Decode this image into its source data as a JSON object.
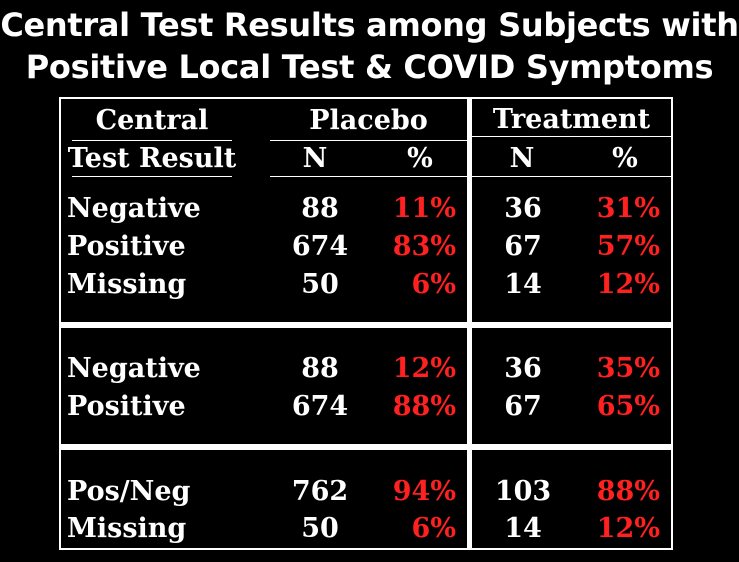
{
  "title": {
    "line1": "Central Test Results among Subjects with",
    "line2": "Positive Local Test & COVID Symptoms"
  },
  "colors": {
    "background": "#000000",
    "text": "#ffffff",
    "percent": "#ff2020"
  },
  "table": {
    "header": {
      "col1_line1": "Central",
      "col1_line2": "Test Result",
      "placebo": "Placebo",
      "treatment": "Treatment",
      "n": "N",
      "pct": "%"
    },
    "sections": [
      {
        "rows": [
          {
            "label": "Negative",
            "placebo_n": "88",
            "placebo_pct": "11%",
            "treatment_n": "36",
            "treatment_pct": "31%"
          },
          {
            "label": "Positive",
            "placebo_n": "674",
            "placebo_pct": "83%",
            "treatment_n": "67",
            "treatment_pct": "57%"
          },
          {
            "label": "Missing",
            "placebo_n": "50",
            "placebo_pct": "6%",
            "treatment_n": "14",
            "treatment_pct": "12%"
          }
        ]
      },
      {
        "rows": [
          {
            "label": "Negative",
            "placebo_n": "88",
            "placebo_pct": "12%",
            "treatment_n": "36",
            "treatment_pct": "35%"
          },
          {
            "label": "Positive",
            "placebo_n": "674",
            "placebo_pct": "88%",
            "treatment_n": "67",
            "treatment_pct": "65%"
          }
        ]
      },
      {
        "rows": [
          {
            "label": "Pos/Neg",
            "placebo_n": "762",
            "placebo_pct": "94%",
            "treatment_n": "103",
            "treatment_pct": "88%"
          },
          {
            "label": "Missing",
            "placebo_n": "50",
            "placebo_pct": "6%",
            "treatment_n": "14",
            "treatment_pct": "12%"
          }
        ]
      }
    ]
  }
}
